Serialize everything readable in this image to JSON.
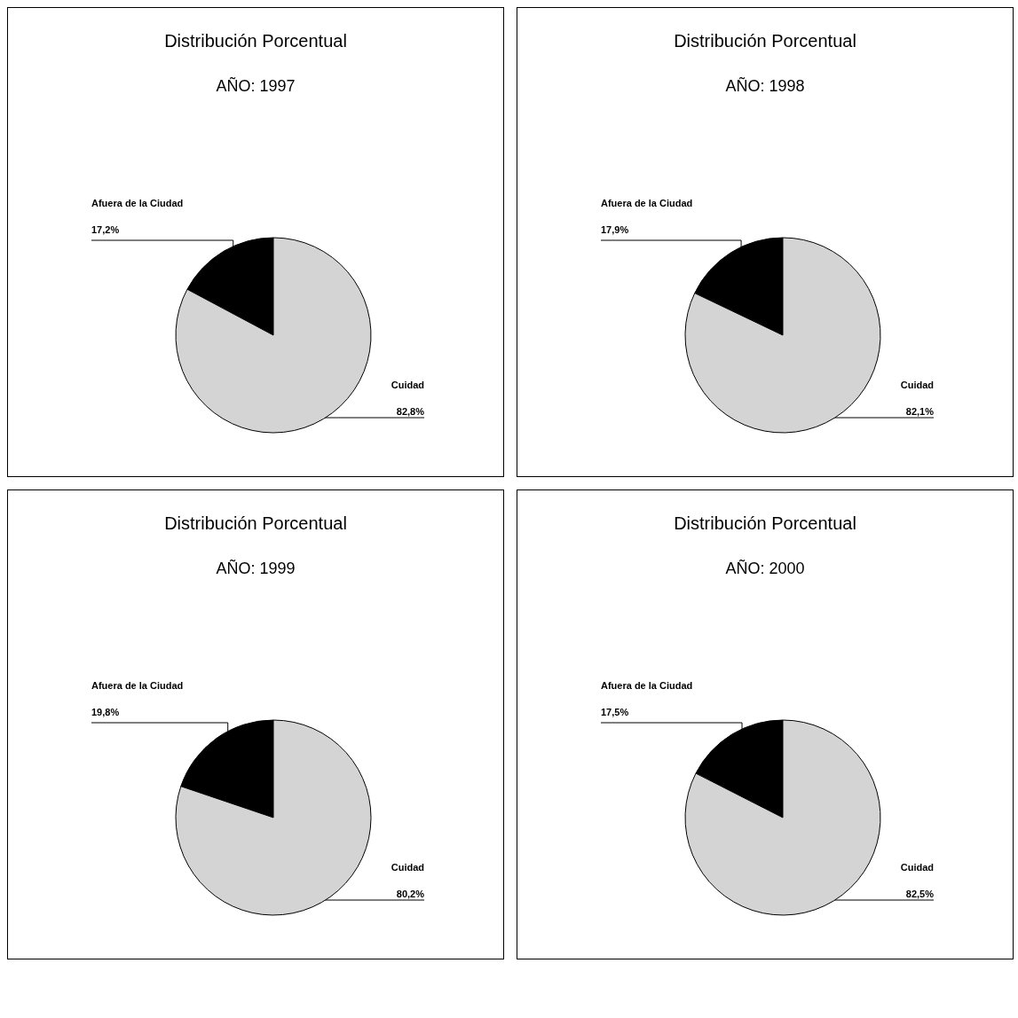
{
  "chart_data": [
    {
      "type": "pie",
      "title": "Distribución Porcentual",
      "subtitle": "AÑO: 1997",
      "categories": [
        "Afuera de la Ciudad",
        "Cuidad"
      ],
      "values": [
        17.2,
        82.8
      ],
      "colors": [
        "#000000",
        "#d4d4d4"
      ],
      "value_labels": [
        "17,2%",
        "82,8%"
      ]
    },
    {
      "type": "pie",
      "title": "Distribución Porcentual",
      "subtitle": "AÑO: 1998",
      "categories": [
        "Afuera de la Ciudad",
        "Cuidad"
      ],
      "values": [
        17.9,
        82.1
      ],
      "colors": [
        "#000000",
        "#d4d4d4"
      ],
      "value_labels": [
        "17,9%",
        "82,1%"
      ]
    },
    {
      "type": "pie",
      "title": "Distribución Porcentual",
      "subtitle": "AÑO: 1999",
      "categories": [
        "Afuera de la Ciudad",
        "Cuidad"
      ],
      "values": [
        19.8,
        80.2
      ],
      "colors": [
        "#000000",
        "#d4d4d4"
      ],
      "value_labels": [
        "19,8%",
        "80,2%"
      ]
    },
    {
      "type": "pie",
      "title": "Distribución Porcentual",
      "subtitle": "AÑO: 2000",
      "categories": [
        "Afuera de la Ciudad",
        "Cuidad"
      ],
      "values": [
        17.5,
        82.5
      ],
      "colors": [
        "#000000",
        "#d4d4d4"
      ],
      "value_labels": [
        "17,5%",
        "82,5%"
      ]
    }
  ]
}
